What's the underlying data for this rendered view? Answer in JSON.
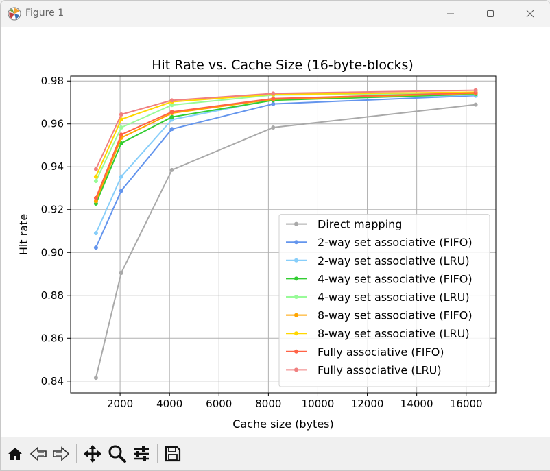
{
  "window": {
    "title": "Figure 1"
  },
  "chart_data": {
    "type": "line",
    "title": "Hit Rate vs. Cache Size (16-byte-blocks)",
    "xlabel": "Cache size (bytes)",
    "ylabel": "Hit rate",
    "xlim": [
      0,
      17200
    ],
    "ylim": [
      0.8345,
      0.9823
    ],
    "xticks": [
      2000,
      4000,
      6000,
      8000,
      10000,
      12000,
      14000,
      16000
    ],
    "xtick_labels": [
      "2000",
      "4000",
      "6000",
      "8000",
      "10000",
      "12000",
      "14000",
      "16000"
    ],
    "yticks": [
      0.84,
      0.86,
      0.88,
      0.9,
      0.92,
      0.94,
      0.96,
      0.98
    ],
    "ytick_labels": [
      "0.84",
      "0.86",
      "0.88",
      "0.90",
      "0.92",
      "0.94",
      "0.96",
      "0.98"
    ],
    "grid": true,
    "legend_position": "lower-right",
    "x": [
      1024,
      2048,
      4096,
      8192,
      16384
    ],
    "series": [
      {
        "name": "Direct mapping",
        "color": "#a9a9a9",
        "values": [
          0.8415,
          0.8905,
          0.9385,
          0.9583,
          0.969
        ]
      },
      {
        "name": "2-way set associative (FIFO)",
        "color": "#6495ed",
        "values": [
          0.9023,
          0.9288,
          0.9576,
          0.9693,
          0.9732
        ]
      },
      {
        "name": "2-way set associative (LRU)",
        "color": "#87cefa",
        "values": [
          0.909,
          0.9354,
          0.962,
          0.9713,
          0.9735
        ]
      },
      {
        "name": "4-way set associative (FIFO)",
        "color": "#32cd32",
        "values": [
          0.9228,
          0.951,
          0.9632,
          0.971,
          0.9739
        ]
      },
      {
        "name": "4-way set associative (LRU)",
        "color": "#98fb98",
        "values": [
          0.9333,
          0.9583,
          0.9688,
          0.9735,
          0.9742
        ]
      },
      {
        "name": "8-way set associative (FIFO)",
        "color": "#ffa500",
        "values": [
          0.924,
          0.9535,
          0.965,
          0.9715,
          0.9743
        ]
      },
      {
        "name": "8-way set associative (LRU)",
        "color": "#ffd700",
        "values": [
          0.9354,
          0.9621,
          0.9703,
          0.9738,
          0.9748
        ]
      },
      {
        "name": "Fully associative (FIFO)",
        "color": "#ff6347",
        "values": [
          0.9254,
          0.955,
          0.9656,
          0.9718,
          0.9745
        ]
      },
      {
        "name": "Fully associative (LRU)",
        "color": "#f08080",
        "values": [
          0.9389,
          0.9644,
          0.971,
          0.9742,
          0.9757
        ]
      }
    ]
  },
  "toolbar": {
    "items": [
      {
        "name": "home-icon"
      },
      {
        "name": "back-arrow-icon"
      },
      {
        "name": "forward-arrow-icon"
      },
      {
        "name": "pan-icon"
      },
      {
        "name": "zoom-icon"
      },
      {
        "name": "configure-subplots-icon"
      },
      {
        "name": "save-icon"
      }
    ]
  }
}
